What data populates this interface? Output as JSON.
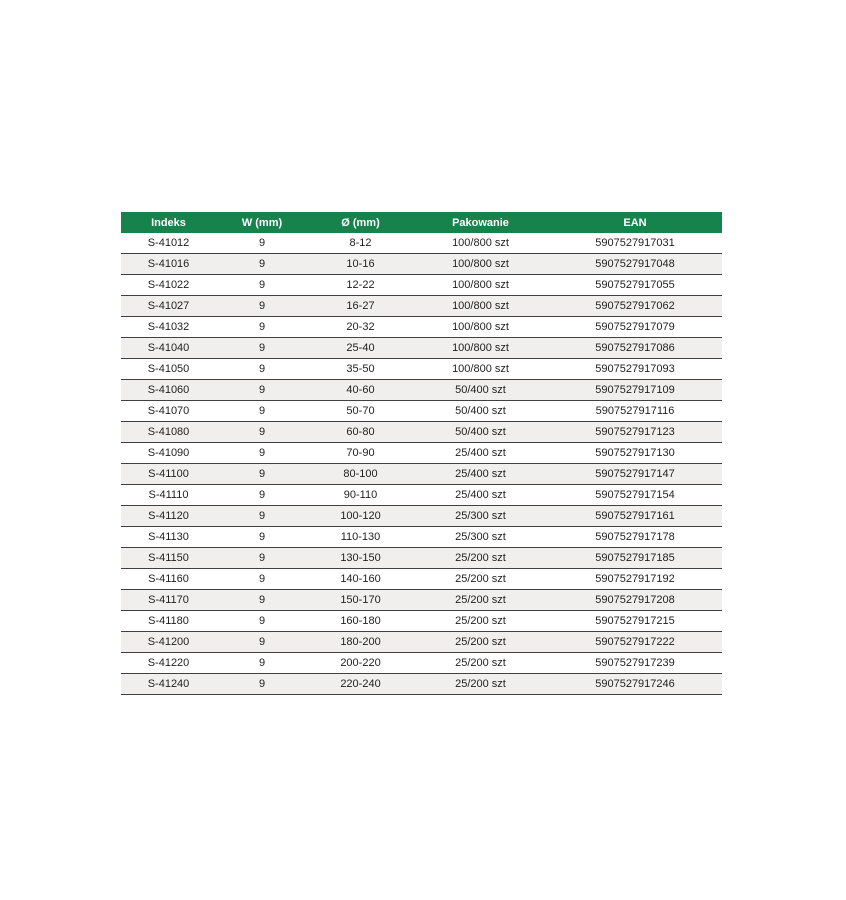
{
  "colors": {
    "header_bg": "#15834b",
    "header_text": "#ffffff",
    "row_bg": "#ffffff",
    "row_alt_bg": "#f0efee",
    "row_border": "#404040",
    "cell_text": "#1f1f1f"
  },
  "chart_data": {
    "type": "table",
    "title": "",
    "columns": [
      "Indeks",
      "W (mm)",
      "Ø (mm)",
      "Pakowanie",
      "EAN"
    ],
    "rows": [
      [
        "S-41012",
        "9",
        "8-12",
        "100/800 szt",
        "5907527917031"
      ],
      [
        "S-41016",
        "9",
        "10-16",
        "100/800 szt",
        "5907527917048"
      ],
      [
        "S-41022",
        "9",
        "12-22",
        "100/800 szt",
        "5907527917055"
      ],
      [
        "S-41027",
        "9",
        "16-27",
        "100/800 szt",
        "5907527917062"
      ],
      [
        "S-41032",
        "9",
        "20-32",
        "100/800 szt",
        "5907527917079"
      ],
      [
        "S-41040",
        "9",
        "25-40",
        "100/800 szt",
        "5907527917086"
      ],
      [
        "S-41050",
        "9",
        "35-50",
        "100/800 szt",
        "5907527917093"
      ],
      [
        "S-41060",
        "9",
        "40-60",
        "50/400 szt",
        "5907527917109"
      ],
      [
        "S-41070",
        "9",
        "50-70",
        "50/400 szt",
        "5907527917116"
      ],
      [
        "S-41080",
        "9",
        "60-80",
        "50/400 szt",
        "5907527917123"
      ],
      [
        "S-41090",
        "9",
        "70-90",
        "25/400 szt",
        "5907527917130"
      ],
      [
        "S-41100",
        "9",
        "80-100",
        "25/400 szt",
        "5907527917147"
      ],
      [
        "S-41110",
        "9",
        "90-110",
        "25/400 szt",
        "5907527917154"
      ],
      [
        "S-41120",
        "9",
        "100-120",
        "25/300 szt",
        "5907527917161"
      ],
      [
        "S-41130",
        "9",
        "110-130",
        "25/300 szt",
        "5907527917178"
      ],
      [
        "S-41150",
        "9",
        "130-150",
        "25/200 szt",
        "5907527917185"
      ],
      [
        "S-41160",
        "9",
        "140-160",
        "25/200 szt",
        "5907527917192"
      ],
      [
        "S-41170",
        "9",
        "150-170",
        "25/200 szt",
        "5907527917208"
      ],
      [
        "S-41180",
        "9",
        "160-180",
        "25/200 szt",
        "5907527917215"
      ],
      [
        "S-41200",
        "9",
        "180-200",
        "25/200 szt",
        "5907527917222"
      ],
      [
        "S-41220",
        "9",
        "200-220",
        "25/200 szt",
        "5907527917239"
      ],
      [
        "S-41240",
        "9",
        "220-240",
        "25/200 szt",
        "5907527917246"
      ]
    ]
  }
}
